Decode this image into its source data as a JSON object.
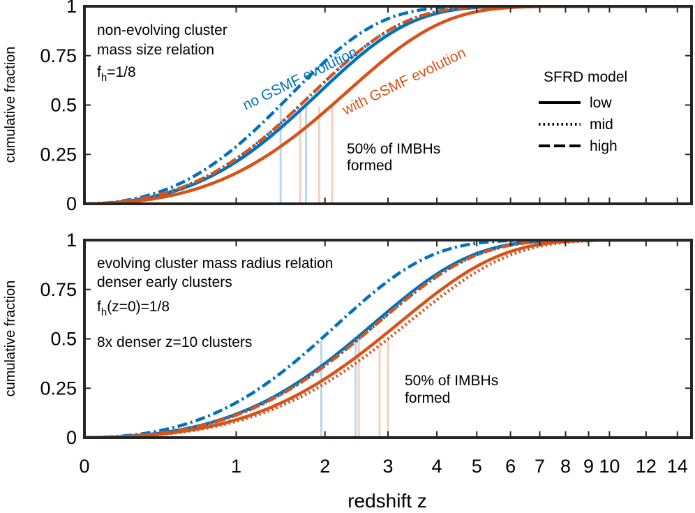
{
  "chart_data": [
    {
      "type": "line",
      "panel": "top",
      "ylabel": "cumulative fraction",
      "xlabel": "",
      "ylim": [
        0,
        1
      ],
      "xlim": [
        0,
        15
      ],
      "yticks": [
        "0",
        "0.25",
        "0.5",
        "0.75",
        "1"
      ],
      "annotations": [
        "non-evolving cluster",
        "mass size relation",
        "f",
        "h",
        "=1/8"
      ],
      "curve_labels": [
        "no GSMF evolution",
        "with GSMF evolution"
      ],
      "note": [
        "50% of IMBHs",
        "formed"
      ],
      "legend": {
        "title": "SFRD model",
        "entries": [
          "low",
          "mid",
          "high"
        ]
      },
      "colors": {
        "no_gsmf": "#0072BD",
        "with_gsmf": "#D95319"
      },
      "series": [
        {
          "name": "no GSMF evolution / low",
          "color": "#0072BD",
          "style": "solid",
          "z50": 1.75
        },
        {
          "name": "no GSMF evolution / mid",
          "color": "#0072BD",
          "style": "dotted",
          "z50": 1.68
        },
        {
          "name": "no GSMF evolution / high",
          "color": "#0072BD",
          "style": "dashdot",
          "z50": 1.45
        },
        {
          "name": "with GSMF evolution / low",
          "color": "#D95319",
          "style": "solid",
          "z50": 2.1
        },
        {
          "name": "with GSMF evolution / mid",
          "color": "#D95319",
          "style": "dotted",
          "z50": 2.1
        },
        {
          "name": "with GSMF evolution / high",
          "color": "#D95319",
          "style": "dashdot",
          "z50": 1.68
        }
      ],
      "median_markers": [
        1.45,
        1.68,
        1.75,
        1.92,
        2.1
      ]
    },
    {
      "type": "line",
      "panel": "bottom",
      "ylabel": "cumulative fraction",
      "xlabel": "redshift z",
      "ylim": [
        0,
        1
      ],
      "xlim": [
        0,
        15
      ],
      "yticks": [
        "0",
        "0.25",
        "0.5",
        "0.75",
        "1"
      ],
      "xticks": [
        0,
        1,
        2,
        3,
        4,
        5,
        6,
        7,
        8,
        9,
        10,
        12,
        14
      ],
      "annotations": [
        "evolving cluster mass radius relation",
        "denser early clusters",
        "f",
        "h",
        "(z=0)=1/8",
        "8x denser z=10 clusters"
      ],
      "note": [
        "50% of IMBHs",
        "formed"
      ],
      "colors": {
        "no_gsmf": "#0072BD",
        "with_gsmf": "#D95319"
      },
      "series": [
        {
          "name": "no GSMF evolution / low",
          "color": "#0072BD",
          "style": "solid",
          "z50": 2.45
        },
        {
          "name": "no GSMF evolution / mid",
          "color": "#0072BD",
          "style": "dotted",
          "z50": 2.5
        },
        {
          "name": "no GSMF evolution / high",
          "color": "#0072BD",
          "style": "dashdot",
          "z50": 1.95
        },
        {
          "name": "with GSMF evolution / low",
          "color": "#D95319",
          "style": "solid",
          "z50": 2.85
        },
        {
          "name": "with GSMF evolution / mid",
          "color": "#D95319",
          "style": "dotted",
          "z50": 3.0
        },
        {
          "name": "with GSMF evolution / high",
          "color": "#D95319",
          "style": "dashdot",
          "z50": 2.5
        }
      ],
      "median_markers": [
        1.95,
        2.45,
        2.5,
        2.85,
        3.0
      ]
    }
  ]
}
